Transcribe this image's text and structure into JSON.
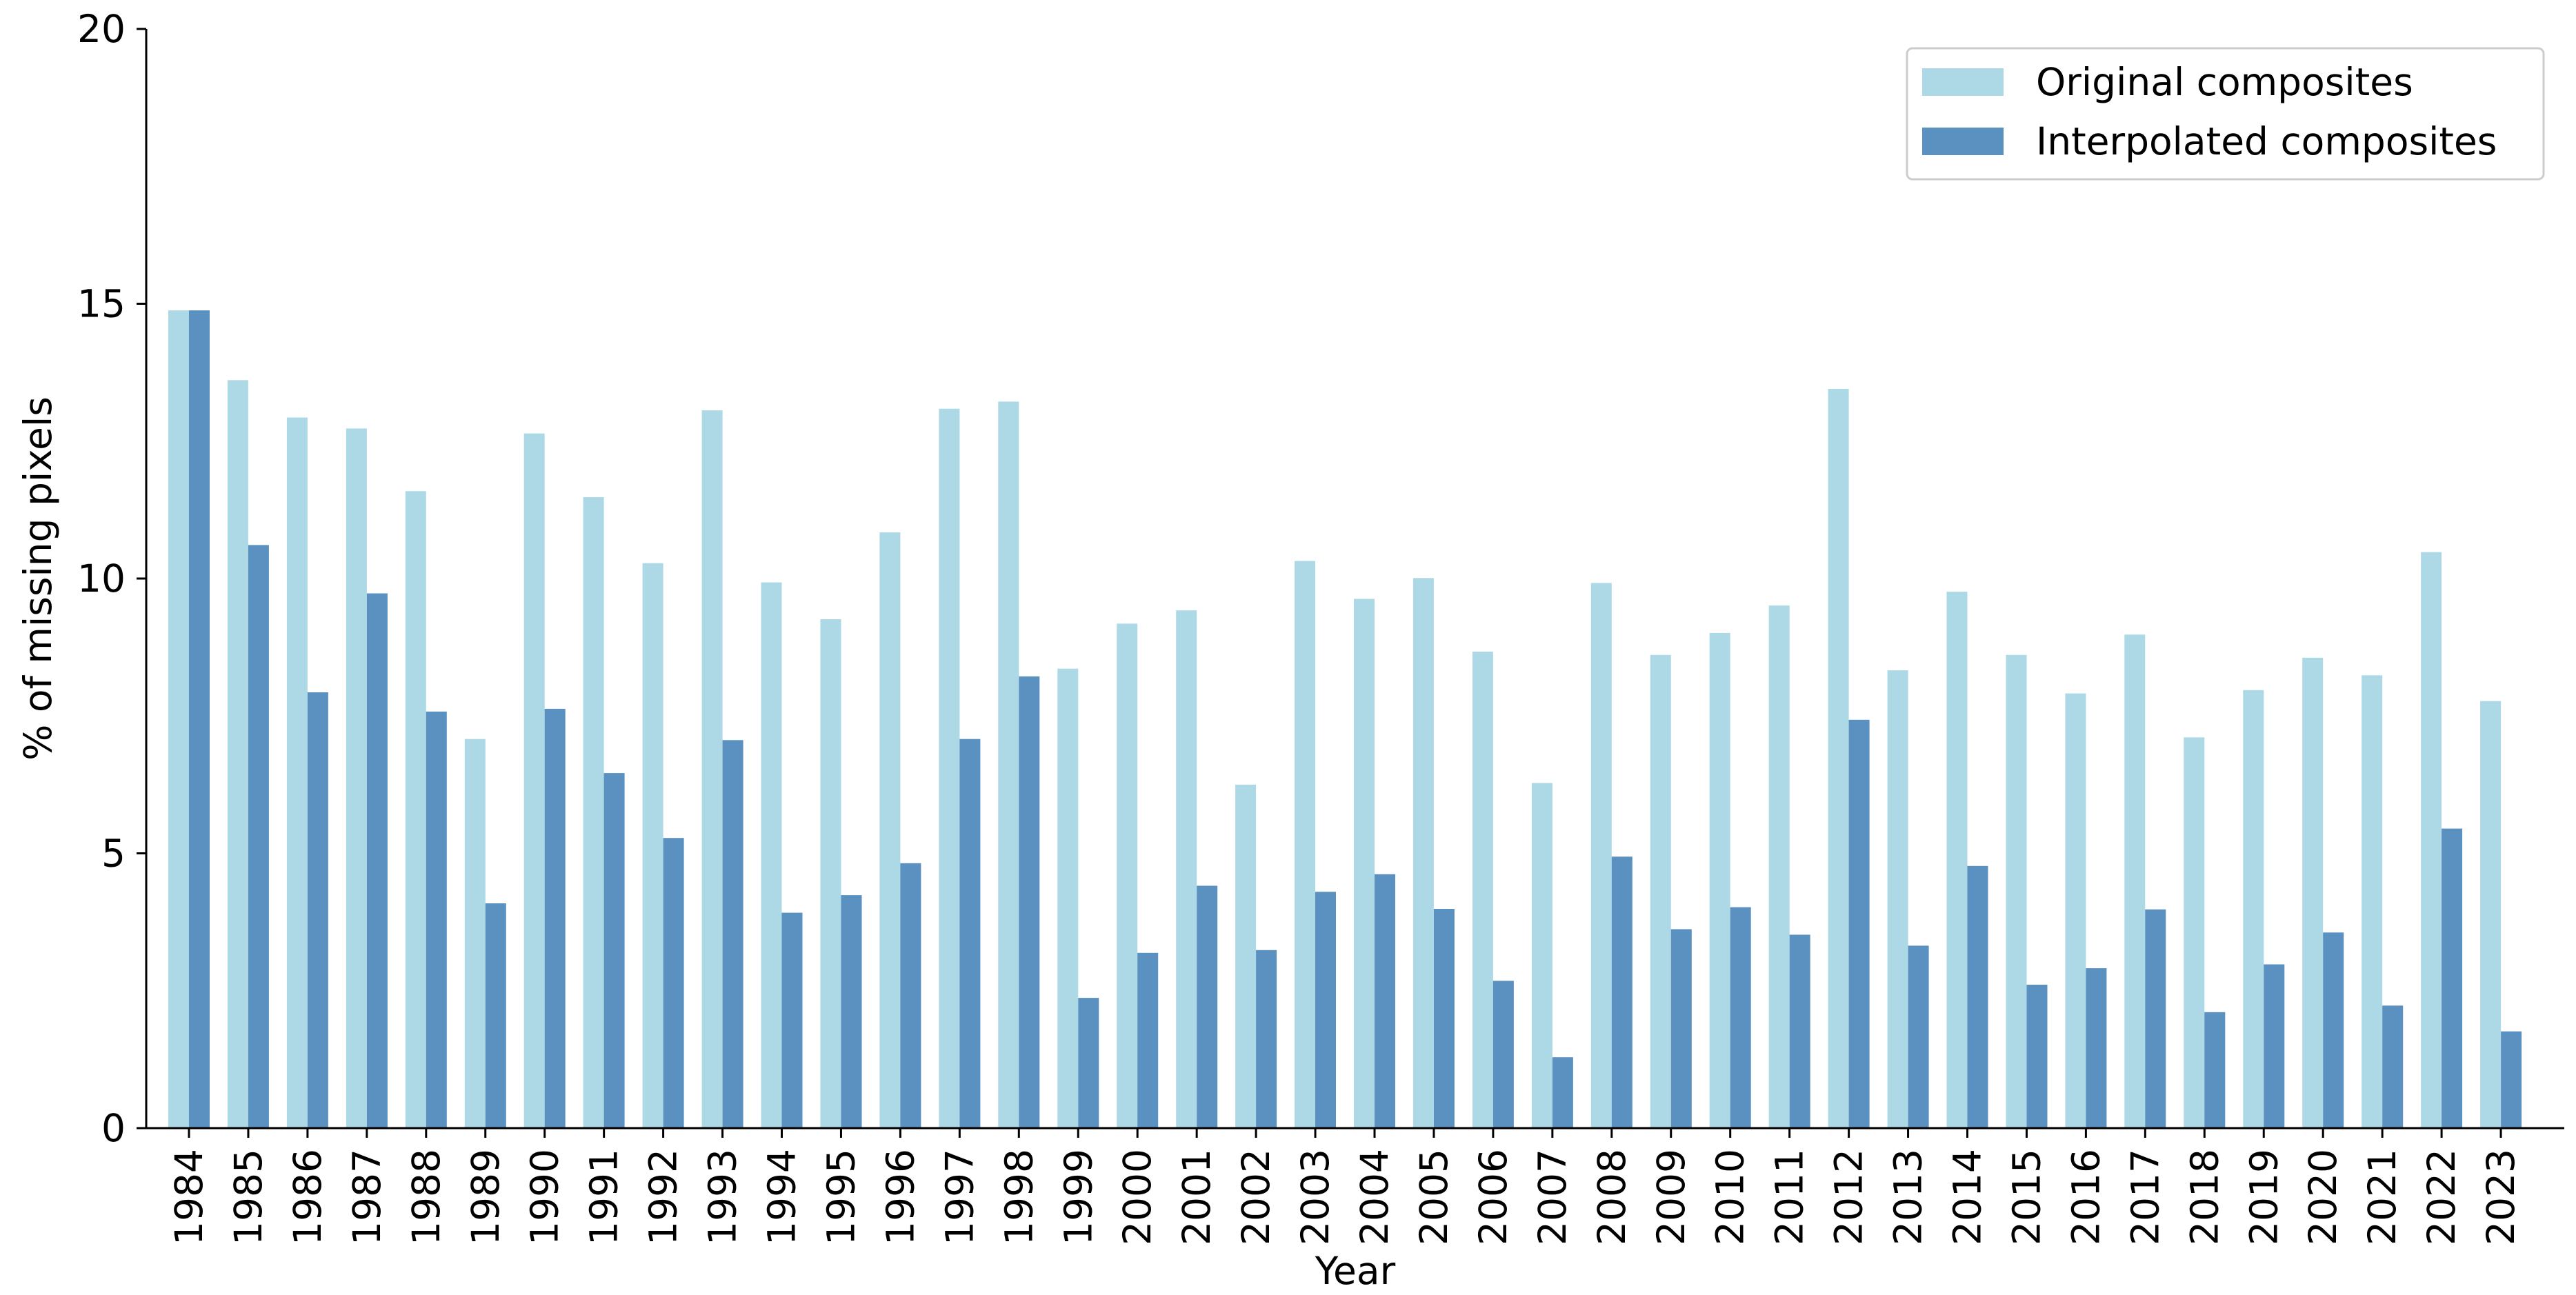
{
  "chart_data": {
    "type": "bar",
    "title": "",
    "xlabel": "Year",
    "ylabel": "% of missing pixels",
    "ylim": [
      0,
      20
    ],
    "yticks": [
      0,
      5,
      10,
      15,
      20
    ],
    "categories": [
      "1984",
      "1985",
      "1986",
      "1987",
      "1988",
      "1989",
      "1990",
      "1991",
      "1992",
      "1993",
      "1994",
      "1995",
      "1996",
      "1997",
      "1998",
      "1999",
      "2000",
      "2001",
      "2002",
      "2003",
      "2004",
      "2005",
      "2006",
      "2007",
      "2008",
      "2009",
      "2010",
      "2011",
      "2012",
      "2013",
      "2014",
      "2015",
      "2016",
      "2017",
      "2018",
      "2019",
      "2020",
      "2021",
      "2022",
      "2023"
    ],
    "series": [
      {
        "name": "Original composites",
        "color": "#add8e6",
        "values": [
          14.88,
          13.61,
          12.93,
          12.73,
          11.59,
          7.08,
          12.64,
          11.48,
          10.28,
          13.06,
          9.93,
          9.26,
          10.84,
          13.09,
          13.22,
          8.36,
          9.18,
          9.42,
          6.25,
          10.32,
          9.63,
          10.01,
          8.67,
          6.28,
          9.92,
          8.61,
          9.01,
          9.51,
          13.45,
          8.33,
          9.76,
          8.61,
          7.91,
          8.98,
          7.11,
          7.97,
          8.56,
          8.24,
          10.48,
          7.77
        ]
      },
      {
        "name": "Interpolated composites",
        "color": "#5b91c0",
        "values": [
          14.88,
          10.61,
          7.93,
          9.73,
          7.58,
          4.09,
          7.63,
          6.46,
          5.28,
          7.06,
          3.92,
          4.24,
          4.82,
          7.08,
          8.22,
          2.37,
          3.19,
          4.41,
          3.24,
          4.3,
          4.62,
          3.99,
          2.68,
          1.29,
          4.94,
          3.62,
          4.02,
          3.52,
          7.43,
          3.32,
          4.77,
          2.61,
          2.91,
          3.98,
          2.11,
          2.98,
          3.56,
          2.23,
          5.45,
          1.76
        ]
      }
    ],
    "grid": false,
    "legend_position": "top-right"
  }
}
